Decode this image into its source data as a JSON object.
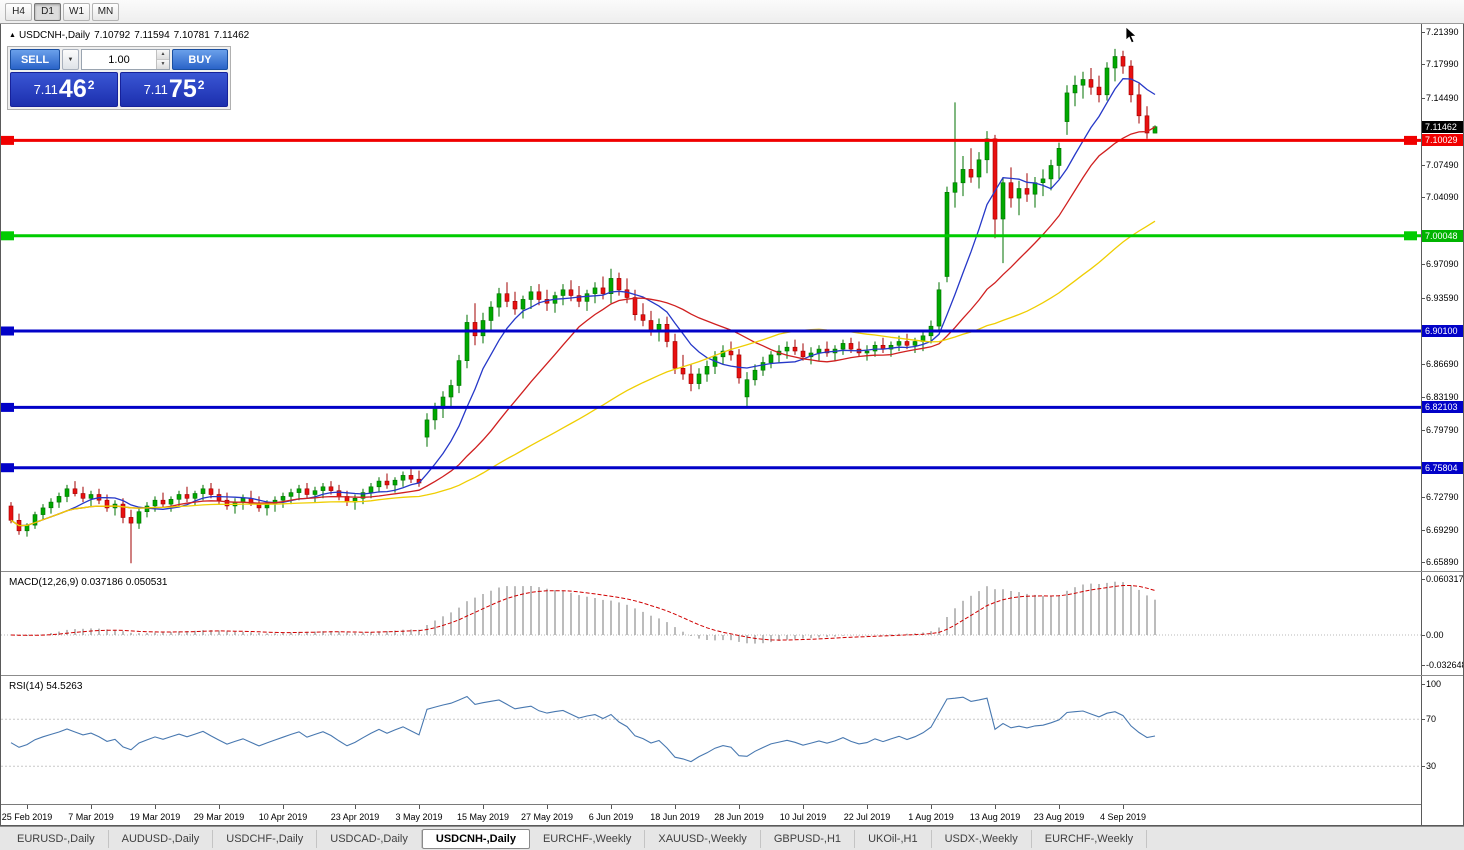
{
  "toolbar": {
    "timeframes": [
      "H4",
      "D1",
      "W1",
      "MN"
    ],
    "active": "D1"
  },
  "chart_header": {
    "collapse_icon": "▲",
    "title": "USDCNH-,Daily",
    "open": "7.10792",
    "high": "7.11594",
    "low": "7.10781",
    "close": "7.11462"
  },
  "trade_panel": {
    "sell_label": "SELL",
    "buy_label": "BUY",
    "volume": "1.00",
    "sell_price": {
      "prefix": "7.11",
      "big": "46",
      "sup": "2"
    },
    "buy_price": {
      "prefix": "7.11",
      "big": "75",
      "sup": "2"
    }
  },
  "indicators": {
    "macd": {
      "label": "MACD(12,26,9) 0.037186 0.050531",
      "scale": [
        "0.060317",
        "0.00",
        "-0.032648"
      ]
    },
    "rsi": {
      "label": "RSI(14) 54.5263",
      "scale": [
        "100",
        "70",
        "30"
      ]
    }
  },
  "price_scale": {
    "ticks": [
      "7.21390",
      "7.17990",
      "7.14490",
      "7.07490",
      "7.04090",
      "6.97090",
      "6.93590",
      "6.86690",
      "6.83190",
      "6.79790",
      "6.72790",
      "6.69290",
      "6.65890"
    ],
    "price_boxes": [
      {
        "name": "current-price-box",
        "text": "7.11462",
        "value": 7.11462,
        "color": "#000000"
      },
      {
        "name": "hline-price-box",
        "text": "7.10029",
        "value": 7.10029,
        "color": "#F00000"
      },
      {
        "name": "hline-price-box",
        "text": "7.00048",
        "value": 7.00048,
        "color": "#00B400"
      },
      {
        "name": "hline-price-box",
        "text": "6.90100",
        "value": 6.901,
        "color": "#0202C8"
      },
      {
        "name": "hline-price-box",
        "text": "6.82103",
        "value": 6.82103,
        "color": "#0202C8"
      },
      {
        "name": "hline-price-box",
        "text": "6.75804",
        "value": 6.75804,
        "color": "#0202C8"
      }
    ]
  },
  "tabs": {
    "items": [
      "EURUSD-,Daily",
      "AUDUSD-,Daily",
      "USDCHF-,Daily",
      "USDCAD-,Daily",
      "USDCNH-,Daily",
      "EURCHF-,Weekly",
      "XAUUSD-,Weekly",
      "GBPUSD-,H1",
      "UKOil-,H1",
      "USDX-,Weekly",
      "EURCHF-,Weekly"
    ],
    "active_index": 4
  },
  "chart_data": {
    "type": "candlestick",
    "symbol": "USDCNH-",
    "timeframe": "Daily",
    "price_range": {
      "top": 7.222,
      "bottom": 6.65
    },
    "colors": {
      "bull": "#00A800",
      "bull_stroke": "#007000",
      "bear": "#E81010",
      "bear_stroke": "#A00000",
      "macd_hist": "#ABABAB",
      "macd_signal": "#D00000",
      "rsi": "#4878B0"
    },
    "hlines": [
      {
        "value": 7.10029,
        "color": "#F00000",
        "width": 3,
        "right_marker": true
      },
      {
        "value": 7.00048,
        "color": "#00CC00",
        "width": 3,
        "right_marker": true
      },
      {
        "value": 6.901,
        "color": "#0202C8",
        "width": 3,
        "right_marker": false
      },
      {
        "value": 6.82103,
        "color": "#0202C8",
        "width": 3,
        "right_marker": false
      },
      {
        "value": 6.75804,
        "color": "#0202C8",
        "width": 3,
        "right_marker": false
      }
    ],
    "current_price": 7.11462,
    "moving_averages": [
      {
        "period": 8,
        "color": "#2638C8"
      },
      {
        "period": 20,
        "color": "#D02020"
      },
      {
        "period": 45,
        "color": "#EFCE02"
      }
    ],
    "macd_panel": {
      "range": {
        "top": 0.0668,
        "bottom": -0.0431
      },
      "ticks": [
        0.060317,
        0.0,
        -0.032648
      ]
    },
    "rsi_panel": {
      "range": {
        "top": 105.8,
        "bottom": -2.0
      },
      "levels": [
        70,
        30
      ],
      "ticks": [
        100,
        70,
        30
      ]
    },
    "x_labels": [
      {
        "text": "25 Feb 2019",
        "index": 2
      },
      {
        "text": "7 Mar 2019",
        "index": 10
      },
      {
        "text": "19 Mar 2019",
        "index": 18
      },
      {
        "text": "29 Mar 2019",
        "index": 26
      },
      {
        "text": "10 Apr 2019",
        "index": 34
      },
      {
        "text": "23 Apr 2019",
        "index": 43
      },
      {
        "text": "3 May 2019",
        "index": 51
      },
      {
        "text": "15 May 2019",
        "index": 59
      },
      {
        "text": "27 May 2019",
        "index": 67
      },
      {
        "text": "6 Jun 2019",
        "index": 75
      },
      {
        "text": "18 Jun 2019",
        "index": 83
      },
      {
        "text": "28 Jun 2019",
        "index": 91
      },
      {
        "text": "10 Jul 2019",
        "index": 99
      },
      {
        "text": "22 Jul 2019",
        "index": 107
      },
      {
        "text": "1 Aug 2019",
        "index": 115
      },
      {
        "text": "13 Aug 2019",
        "index": 123
      },
      {
        "text": "23 Aug 2019",
        "index": 131
      },
      {
        "text": "4 Sep 2019",
        "index": 139
      }
    ],
    "candles": [
      [
        6.718,
        6.722,
        6.7,
        6.703
      ],
      [
        6.703,
        6.71,
        6.688,
        6.692
      ],
      [
        6.692,
        6.7,
        6.686,
        6.698
      ],
      [
        6.698,
        6.712,
        6.694,
        6.709
      ],
      [
        6.709,
        6.72,
        6.704,
        6.716
      ],
      [
        6.716,
        6.726,
        6.71,
        6.722
      ],
      [
        6.722,
        6.732,
        6.716,
        6.728
      ],
      [
        6.728,
        6.74,
        6.722,
        6.736
      ],
      [
        6.736,
        6.744,
        6.728,
        6.731
      ],
      [
        6.731,
        6.738,
        6.722,
        6.726
      ],
      [
        6.726,
        6.734,
        6.718,
        6.73
      ],
      [
        6.73,
        6.736,
        6.72,
        6.724
      ],
      [
        6.724,
        6.73,
        6.712,
        6.716
      ],
      [
        6.716,
        6.724,
        6.708,
        6.72
      ],
      [
        6.72,
        6.726,
        6.7,
        6.706
      ],
      [
        6.706,
        6.714,
        6.658,
        6.7
      ],
      [
        6.7,
        6.716,
        6.694,
        6.712
      ],
      [
        6.712,
        6.722,
        6.706,
        6.718
      ],
      [
        6.718,
        6.728,
        6.712,
        6.724
      ],
      [
        6.724,
        6.732,
        6.716,
        6.72
      ],
      [
        6.72,
        6.728,
        6.712,
        6.725
      ],
      [
        6.725,
        6.734,
        6.718,
        6.73
      ],
      [
        6.73,
        6.738,
        6.722,
        6.726
      ],
      [
        6.726,
        6.734,
        6.718,
        6.731
      ],
      [
        6.731,
        6.74,
        6.724,
        6.736
      ],
      [
        6.736,
        6.742,
        6.726,
        6.73
      ],
      [
        6.73,
        6.736,
        6.72,
        6.724
      ],
      [
        6.724,
        6.732,
        6.714,
        6.718
      ],
      [
        6.718,
        6.726,
        6.71,
        6.722
      ],
      [
        6.722,
        6.73,
        6.714,
        6.726
      ],
      [
        6.726,
        6.734,
        6.718,
        6.721
      ],
      [
        6.721,
        6.728,
        6.712,
        6.716
      ],
      [
        6.716,
        6.724,
        6.708,
        6.72
      ],
      [
        6.72,
        6.728,
        6.712,
        6.724
      ],
      [
        6.724,
        6.732,
        6.716,
        6.728
      ],
      [
        6.728,
        6.736,
        6.72,
        6.732
      ],
      [
        6.732,
        6.74,
        6.724,
        6.736
      ],
      [
        6.736,
        6.742,
        6.726,
        6.73
      ],
      [
        6.73,
        6.738,
        6.722,
        6.734
      ],
      [
        6.734,
        6.742,
        6.726,
        6.738
      ],
      [
        6.738,
        6.744,
        6.73,
        6.734
      ],
      [
        6.734,
        6.74,
        6.724,
        6.728
      ],
      [
        6.728,
        6.734,
        6.718,
        6.722
      ],
      [
        6.722,
        6.73,
        6.714,
        6.726
      ],
      [
        6.726,
        6.736,
        6.72,
        6.732
      ],
      [
        6.732,
        6.742,
        6.726,
        6.738
      ],
      [
        6.738,
        6.748,
        6.732,
        6.744
      ],
      [
        6.744,
        6.752,
        6.736,
        6.74
      ],
      [
        6.74,
        6.748,
        6.732,
        6.745
      ],
      [
        6.745,
        6.754,
        6.738,
        6.75
      ],
      [
        6.75,
        6.758,
        6.742,
        6.746
      ],
      [
        6.746,
        6.755,
        6.738,
        6.742
      ],
      [
        6.79,
        6.815,
        6.78,
        6.808
      ],
      [
        6.808,
        6.826,
        6.798,
        6.82
      ],
      [
        6.82,
        6.838,
        6.81,
        6.832
      ],
      [
        6.832,
        6.85,
        6.82,
        6.844
      ],
      [
        6.844,
        6.876,
        6.836,
        6.87
      ],
      [
        6.87,
        6.918,
        6.862,
        6.91
      ],
      [
        6.91,
        6.93,
        6.886,
        6.896
      ],
      [
        6.896,
        6.92,
        6.888,
        6.912
      ],
      [
        6.912,
        6.932,
        6.902,
        6.926
      ],
      [
        6.926,
        6.946,
        6.916,
        6.94
      ],
      [
        6.94,
        6.952,
        6.926,
        6.932
      ],
      [
        6.932,
        6.942,
        6.918,
        6.924
      ],
      [
        6.924,
        6.938,
        6.914,
        6.934
      ],
      [
        6.934,
        6.948,
        6.924,
        6.942
      ],
      [
        6.942,
        6.95,
        6.928,
        6.934
      ],
      [
        6.934,
        6.944,
        6.922,
        6.93
      ],
      [
        6.93,
        6.942,
        6.92,
        6.938
      ],
      [
        6.938,
        6.95,
        6.928,
        6.944
      ],
      [
        6.944,
        6.954,
        6.932,
        6.938
      ],
      [
        6.938,
        6.948,
        6.926,
        6.932
      ],
      [
        6.932,
        6.944,
        6.922,
        6.94
      ],
      [
        6.94,
        6.952,
        6.93,
        6.946
      ],
      [
        6.946,
        6.958,
        6.934,
        6.94
      ],
      [
        6.94,
        6.966,
        6.93,
        6.956
      ],
      [
        6.956,
        6.962,
        6.938,
        6.944
      ],
      [
        6.944,
        6.956,
        6.93,
        6.936
      ],
      [
        6.936,
        6.944,
        6.912,
        6.918
      ],
      [
        6.918,
        6.93,
        6.906,
        6.912
      ],
      [
        6.912,
        6.922,
        6.896,
        6.902
      ],
      [
        6.902,
        6.914,
        6.89,
        6.908
      ],
      [
        6.908,
        6.916,
        6.884,
        6.89
      ],
      [
        6.89,
        6.898,
        6.856,
        6.862
      ],
      [
        6.862,
        6.876,
        6.85,
        6.856
      ],
      [
        6.856,
        6.866,
        6.838,
        6.846
      ],
      [
        6.846,
        6.862,
        6.84,
        6.856
      ],
      [
        6.856,
        6.87,
        6.848,
        6.864
      ],
      [
        6.864,
        6.88,
        6.856,
        6.874
      ],
      [
        6.874,
        6.886,
        6.866,
        6.88
      ],
      [
        6.88,
        6.89,
        6.87,
        6.876
      ],
      [
        6.876,
        6.882,
        6.846,
        6.852
      ],
      [
        6.832,
        6.858,
        6.822,
        6.85
      ],
      [
        6.85,
        6.866,
        6.844,
        6.86
      ],
      [
        6.86,
        6.874,
        6.854,
        6.868
      ],
      [
        6.868,
        6.88,
        6.862,
        6.876
      ],
      [
        6.876,
        6.886,
        6.868,
        6.88
      ],
      [
        6.88,
        6.89,
        6.872,
        6.884
      ],
      [
        6.884,
        6.892,
        6.876,
        6.88
      ],
      [
        6.88,
        6.888,
        6.87,
        6.874
      ],
      [
        6.874,
        6.884,
        6.866,
        6.878
      ],
      [
        6.878,
        6.886,
        6.87,
        6.882
      ],
      [
        6.882,
        6.89,
        6.874,
        6.878
      ],
      [
        6.878,
        6.886,
        6.87,
        6.882
      ],
      [
        6.882,
        6.892,
        6.876,
        6.888
      ],
      [
        6.888,
        6.894,
        6.878,
        6.882
      ],
      [
        6.882,
        6.89,
        6.874,
        6.878
      ],
      [
        6.878,
        6.886,
        6.87,
        6.88
      ],
      [
        6.88,
        6.89,
        6.874,
        6.886
      ],
      [
        6.886,
        6.894,
        6.878,
        6.882
      ],
      [
        6.882,
        6.89,
        6.874,
        6.886
      ],
      [
        6.886,
        6.896,
        6.88,
        6.89
      ],
      [
        6.89,
        6.898,
        6.882,
        6.886
      ],
      [
        6.886,
        6.894,
        6.878,
        6.89
      ],
      [
        6.89,
        6.902,
        6.88,
        6.896
      ],
      [
        6.896,
        6.912,
        6.888,
        6.906
      ],
      [
        6.906,
        6.952,
        6.9,
        6.944
      ],
      [
        6.958,
        7.052,
        6.952,
        7.046
      ],
      [
        7.046,
        7.14,
        7.03,
        7.056
      ],
      [
        7.056,
        7.084,
        7.042,
        7.07
      ],
      [
        7.07,
        7.092,
        7.056,
        7.062
      ],
      [
        7.062,
        7.088,
        7.05,
        7.08
      ],
      [
        7.08,
        7.11,
        7.066,
        7.102
      ],
      [
        7.102,
        7.106,
        6.998,
        7.018
      ],
      [
        7.018,
        7.062,
        6.972,
        7.056
      ],
      [
        7.056,
        7.072,
        7.03,
        7.04
      ],
      [
        7.04,
        7.058,
        7.022,
        7.05
      ],
      [
        7.05,
        7.066,
        7.036,
        7.044
      ],
      [
        7.044,
        7.062,
        7.03,
        7.056
      ],
      [
        7.056,
        7.07,
        7.042,
        7.06
      ],
      [
        7.06,
        7.08,
        7.048,
        7.074
      ],
      [
        7.074,
        7.098,
        7.06,
        7.092
      ],
      [
        7.12,
        7.158,
        7.106,
        7.15
      ],
      [
        7.15,
        7.168,
        7.136,
        7.158
      ],
      [
        7.158,
        7.172,
        7.144,
        7.164
      ],
      [
        7.164,
        7.176,
        7.148,
        7.156
      ],
      [
        7.156,
        7.168,
        7.14,
        7.148
      ],
      [
        7.148,
        7.182,
        7.142,
        7.176
      ],
      [
        7.176,
        7.196,
        7.162,
        7.188
      ],
      [
        7.188,
        7.194,
        7.17,
        7.178
      ],
      [
        7.178,
        7.184,
        7.14,
        7.148
      ],
      [
        7.148,
        7.16,
        7.118,
        7.126
      ],
      [
        7.126,
        7.136,
        7.102,
        7.108
      ],
      [
        7.10792,
        7.11594,
        7.10781,
        7.11462
      ]
    ]
  }
}
